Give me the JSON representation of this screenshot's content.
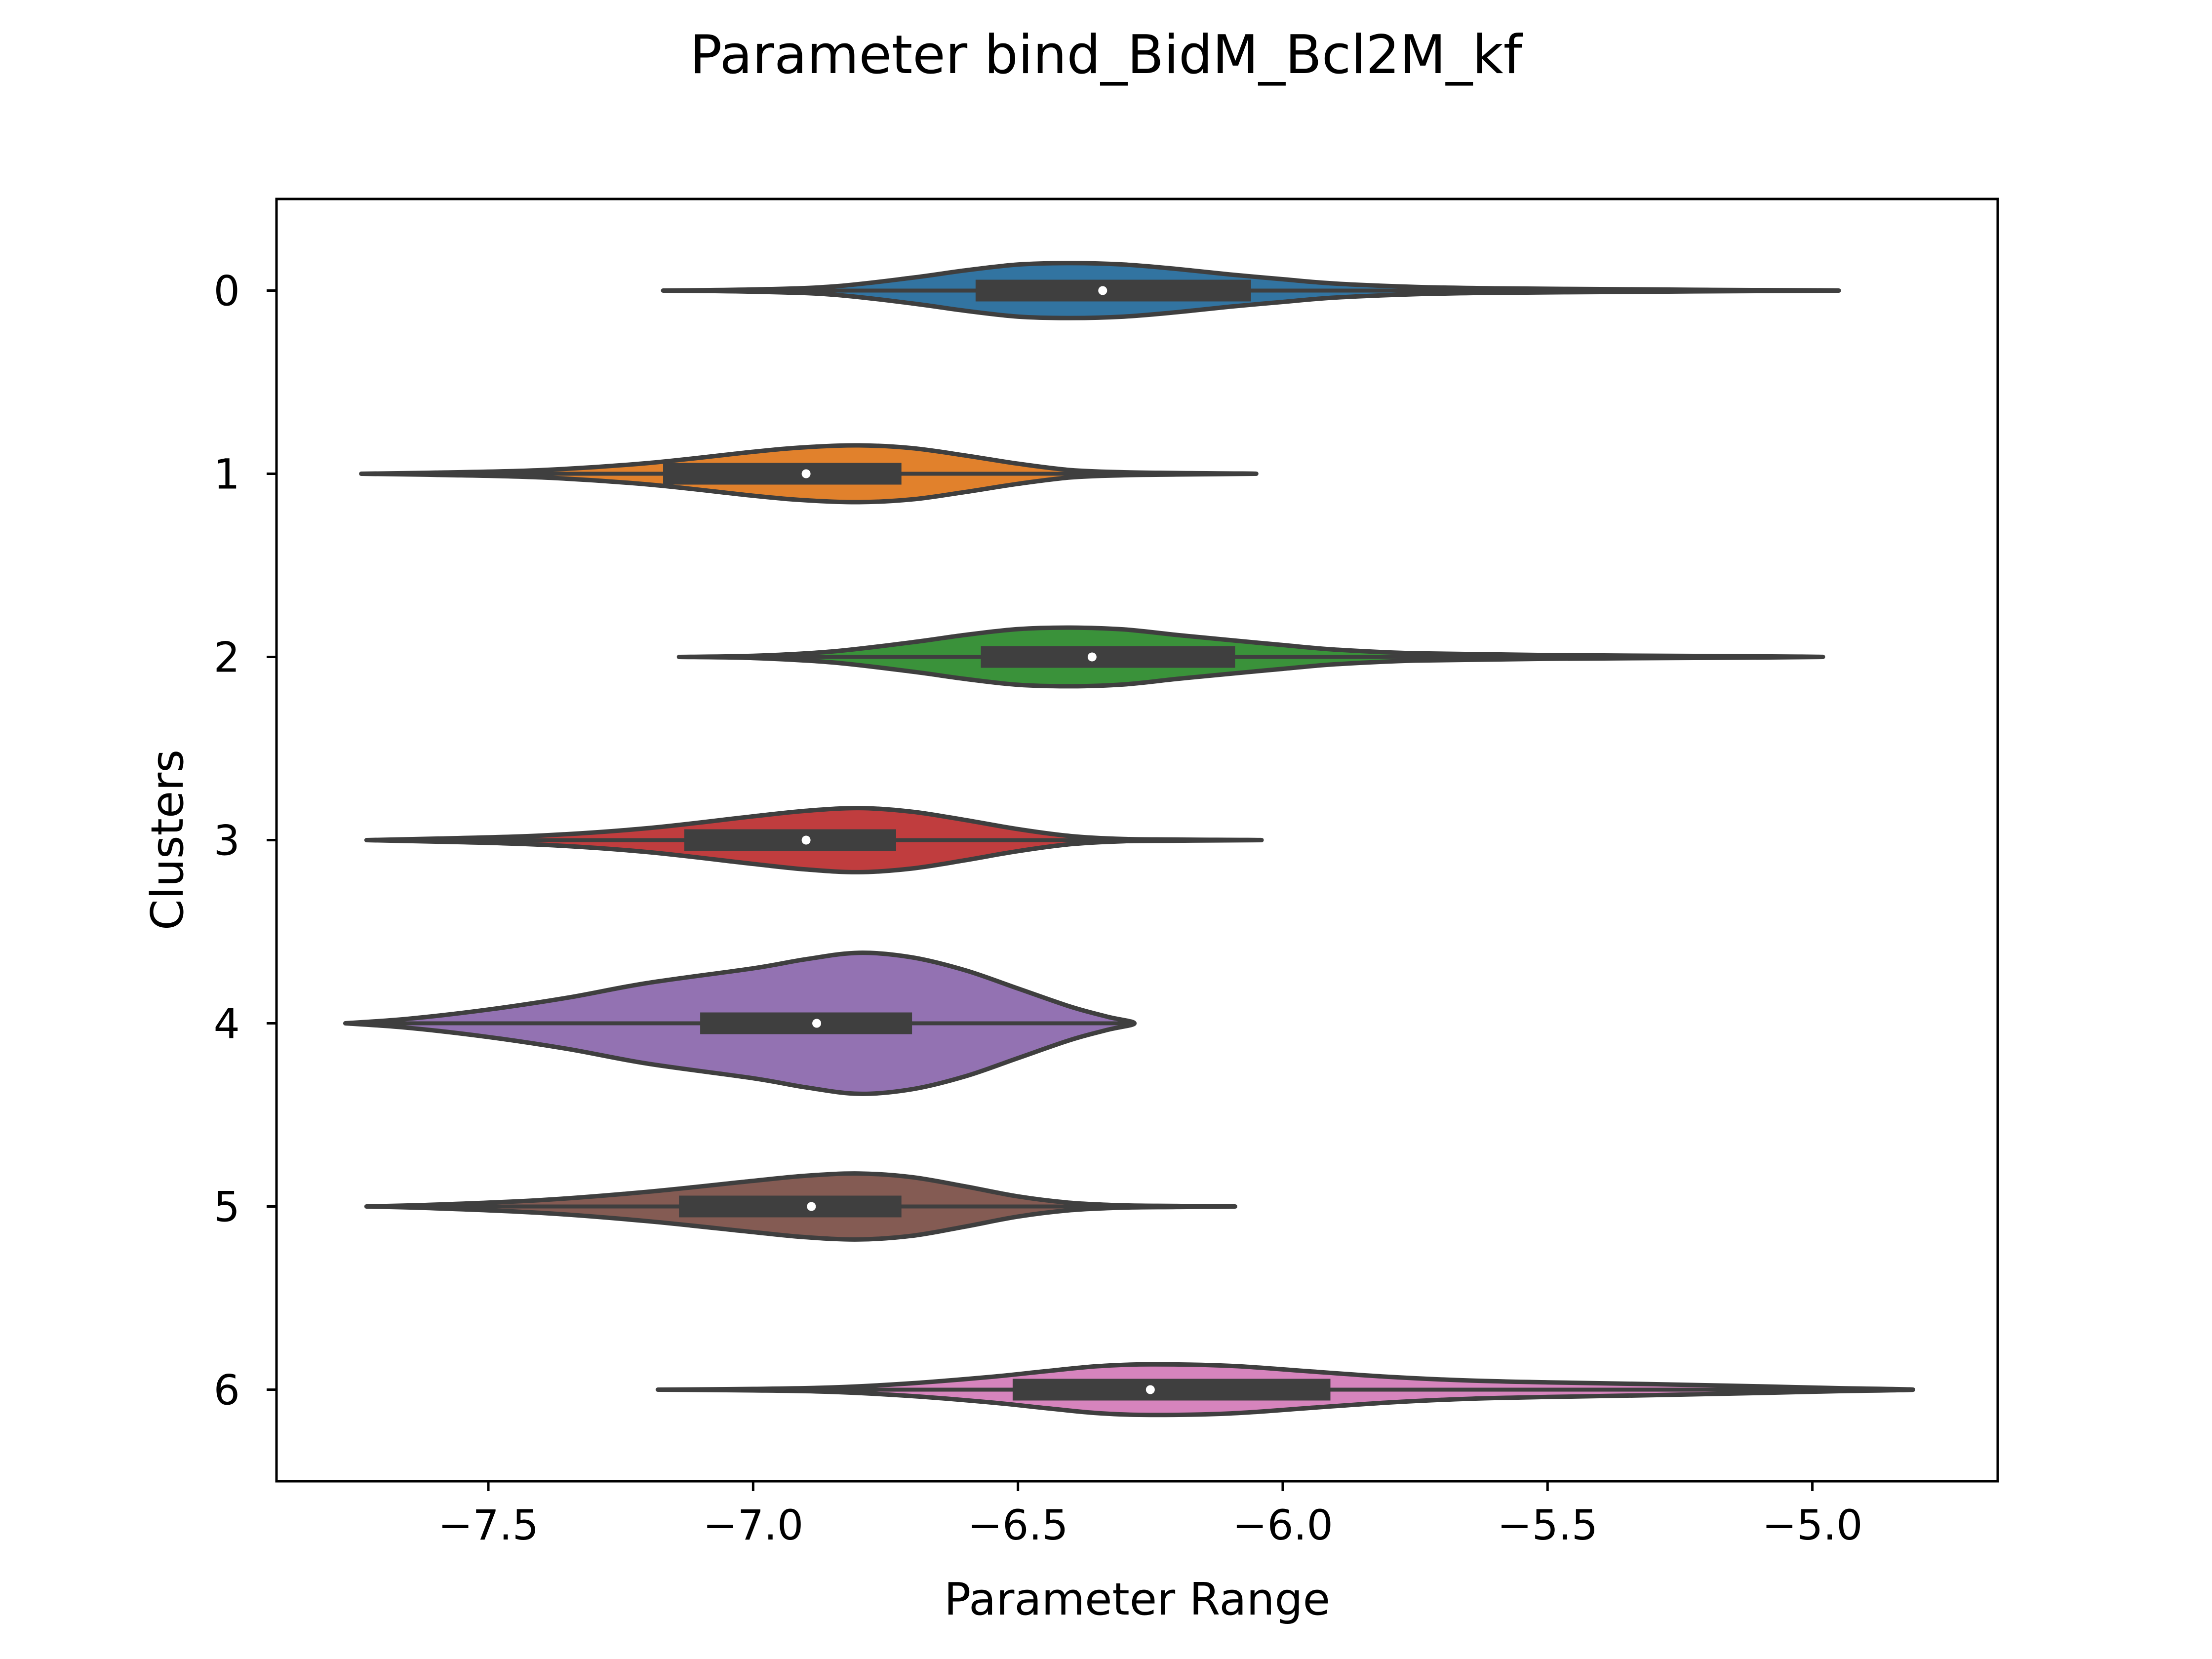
{
  "chart_data": {
    "type": "violin",
    "orientation": "horizontal",
    "title": "Parameter bind_BidM_Bcl2M_kf",
    "xlabel": "Parameter Range",
    "ylabel": "Clusters",
    "xlim": [
      -7.9,
      -4.65
    ],
    "ylim": [
      6.5,
      -0.5
    ],
    "x_ticks": [
      -7.5,
      -7.0,
      -6.5,
      -6.0,
      -5.5,
      -5.0
    ],
    "x_tick_labels": [
      "−7.5",
      "−7.0",
      "−6.5",
      "−6.0",
      "−5.5",
      "−5.0"
    ],
    "categories": [
      "0",
      "1",
      "2",
      "3",
      "4",
      "5",
      "6"
    ],
    "colors": [
      "#3274a1",
      "#e1812c",
      "#3a923a",
      "#c03d3e",
      "#9372b2",
      "#845b53",
      "#d684bd"
    ],
    "outline_color": "#3f3f3f",
    "grid": false,
    "legend": "none",
    "violins": [
      {
        "category": "0",
        "min": -7.17,
        "max": -4.95,
        "q1": -6.58,
        "median": -6.34,
        "q3": -6.06,
        "density": [
          [
            -7.17,
            0.0
          ],
          [
            -7.0,
            0.006
          ],
          [
            -6.85,
            0.022
          ],
          [
            -6.7,
            0.07
          ],
          [
            -6.6,
            0.11
          ],
          [
            -6.5,
            0.142
          ],
          [
            -6.4,
            0.15
          ],
          [
            -6.3,
            0.142
          ],
          [
            -6.2,
            0.118
          ],
          [
            -6.1,
            0.088
          ],
          [
            -6.0,
            0.062
          ],
          [
            -5.9,
            0.038
          ],
          [
            -5.75,
            0.02
          ],
          [
            -5.6,
            0.012
          ],
          [
            -5.4,
            0.008
          ],
          [
            -5.2,
            0.004
          ],
          [
            -4.95,
            0.0
          ]
        ]
      },
      {
        "category": "1",
        "min": -7.74,
        "max": -6.05,
        "q1": -7.17,
        "median": -6.9,
        "q3": -6.72,
        "density": [
          [
            -7.74,
            0.0
          ],
          [
            -7.6,
            0.006
          ],
          [
            -7.4,
            0.02
          ],
          [
            -7.2,
            0.058
          ],
          [
            -7.0,
            0.12
          ],
          [
            -6.9,
            0.145
          ],
          [
            -6.8,
            0.155
          ],
          [
            -6.7,
            0.14
          ],
          [
            -6.6,
            0.1
          ],
          [
            -6.5,
            0.055
          ],
          [
            -6.4,
            0.02
          ],
          [
            -6.3,
            0.008
          ],
          [
            -6.2,
            0.004
          ],
          [
            -6.05,
            0.0
          ]
        ]
      },
      {
        "category": "2",
        "min": -7.14,
        "max": -4.98,
        "q1": -6.57,
        "median": -6.36,
        "q3": -6.09,
        "density": [
          [
            -7.14,
            0.0
          ],
          [
            -7.0,
            0.006
          ],
          [
            -6.85,
            0.03
          ],
          [
            -6.7,
            0.08
          ],
          [
            -6.6,
            0.12
          ],
          [
            -6.5,
            0.152
          ],
          [
            -6.4,
            0.16
          ],
          [
            -6.3,
            0.15
          ],
          [
            -6.2,
            0.12
          ],
          [
            -6.1,
            0.092
          ],
          [
            -6.0,
            0.065
          ],
          [
            -5.9,
            0.04
          ],
          [
            -5.75,
            0.02
          ],
          [
            -5.5,
            0.01
          ],
          [
            -5.2,
            0.005
          ],
          [
            -4.98,
            0.0
          ]
        ]
      },
      {
        "category": "3",
        "min": -7.73,
        "max": -6.04,
        "q1": -7.13,
        "median": -6.9,
        "q3": -6.73,
        "density": [
          [
            -7.73,
            0.0
          ],
          [
            -7.6,
            0.008
          ],
          [
            -7.4,
            0.025
          ],
          [
            -7.2,
            0.065
          ],
          [
            -7.0,
            0.13
          ],
          [
            -6.9,
            0.16
          ],
          [
            -6.8,
            0.175
          ],
          [
            -6.7,
            0.155
          ],
          [
            -6.6,
            0.11
          ],
          [
            -6.5,
            0.06
          ],
          [
            -6.4,
            0.022
          ],
          [
            -6.3,
            0.006
          ],
          [
            -6.2,
            0.003
          ],
          [
            -6.04,
            0.0
          ]
        ]
      },
      {
        "category": "4",
        "min": -7.77,
        "max": -6.28,
        "q1": -7.1,
        "median": -6.88,
        "q3": -6.7,
        "density": [
          [
            -7.77,
            0.0
          ],
          [
            -7.65,
            0.025
          ],
          [
            -7.5,
            0.075
          ],
          [
            -7.35,
            0.14
          ],
          [
            -7.2,
            0.22
          ],
          [
            -7.0,
            0.3
          ],
          [
            -6.9,
            0.35
          ],
          [
            -6.8,
            0.385
          ],
          [
            -6.7,
            0.36
          ],
          [
            -6.6,
            0.29
          ],
          [
            -6.5,
            0.19
          ],
          [
            -6.4,
            0.09
          ],
          [
            -6.33,
            0.035
          ],
          [
            -6.28,
            0.0
          ]
        ]
      },
      {
        "category": "5",
        "min": -7.73,
        "max": -6.09,
        "q1": -7.14,
        "median": -6.89,
        "q3": -6.72,
        "density": [
          [
            -7.73,
            0.0
          ],
          [
            -7.6,
            0.01
          ],
          [
            -7.4,
            0.035
          ],
          [
            -7.2,
            0.08
          ],
          [
            -7.0,
            0.14
          ],
          [
            -6.9,
            0.168
          ],
          [
            -6.8,
            0.18
          ],
          [
            -6.7,
            0.16
          ],
          [
            -6.6,
            0.11
          ],
          [
            -6.5,
            0.055
          ],
          [
            -6.4,
            0.02
          ],
          [
            -6.3,
            0.006
          ],
          [
            -6.2,
            0.003
          ],
          [
            -6.09,
            0.0
          ]
        ]
      },
      {
        "category": "6",
        "min": -7.18,
        "max": -4.81,
        "q1": -6.51,
        "median": -6.25,
        "q3": -5.91,
        "density": [
          [
            -7.18,
            0.0
          ],
          [
            -7.0,
            0.004
          ],
          [
            -6.85,
            0.012
          ],
          [
            -6.7,
            0.035
          ],
          [
            -6.55,
            0.07
          ],
          [
            -6.45,
            0.1
          ],
          [
            -6.35,
            0.128
          ],
          [
            -6.25,
            0.138
          ],
          [
            -6.1,
            0.13
          ],
          [
            -5.95,
            0.1
          ],
          [
            -5.8,
            0.07
          ],
          [
            -5.65,
            0.05
          ],
          [
            -5.5,
            0.04
          ],
          [
            -5.3,
            0.03
          ],
          [
            -5.1,
            0.018
          ],
          [
            -4.95,
            0.008
          ],
          [
            -4.81,
            0.0
          ]
        ]
      }
    ]
  }
}
